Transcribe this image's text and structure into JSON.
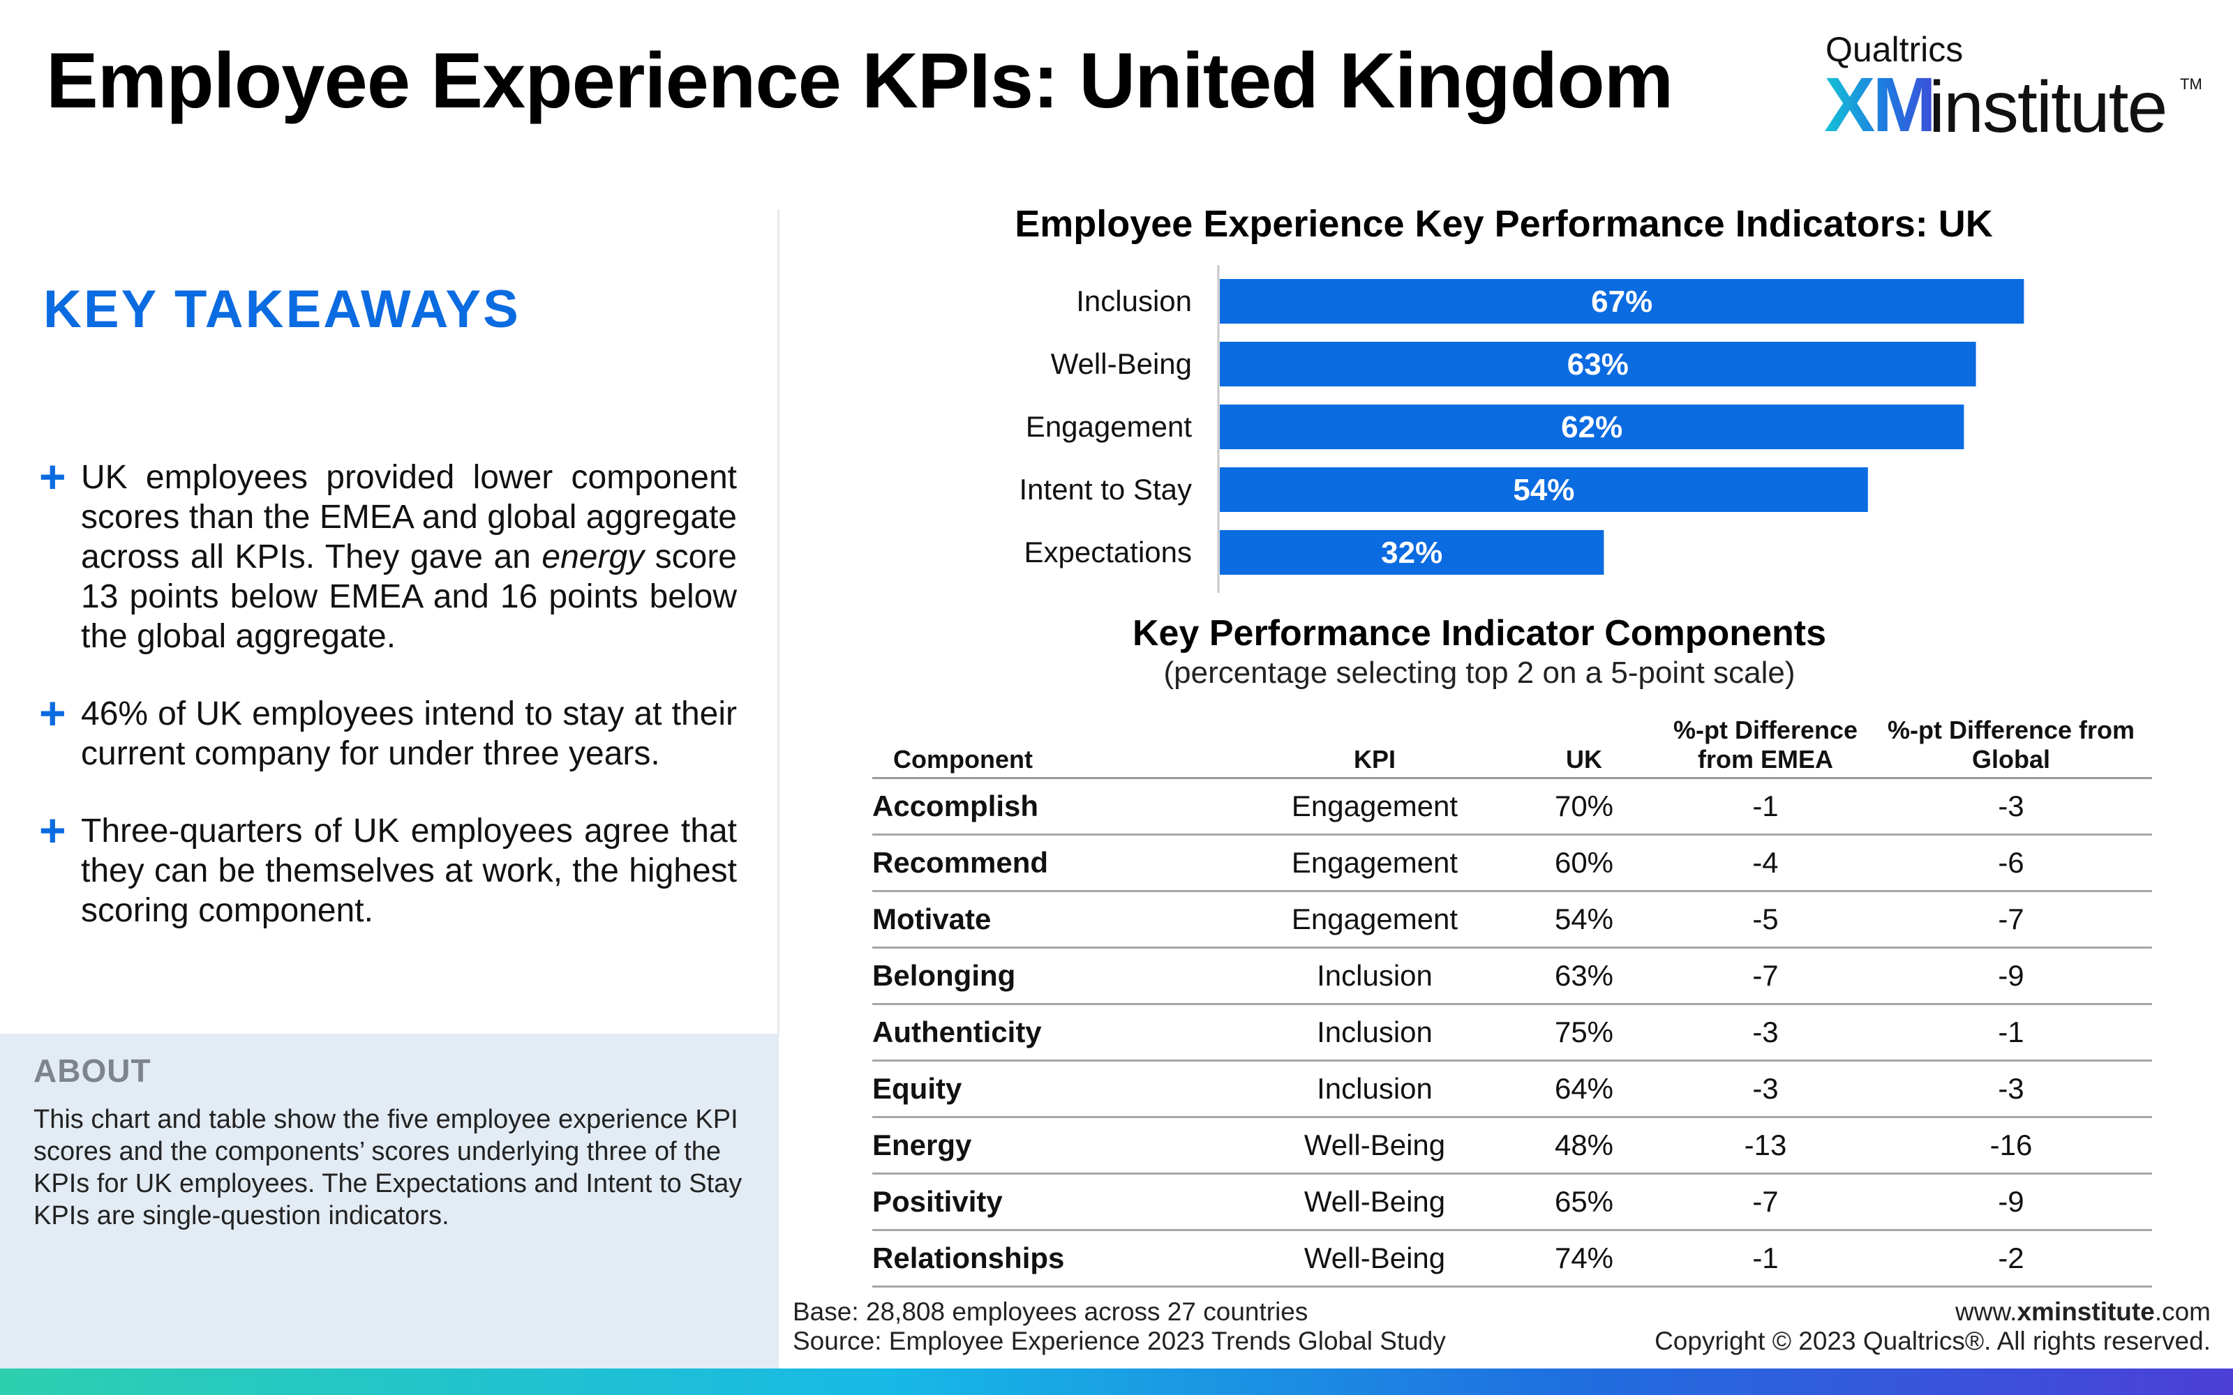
{
  "header": {
    "title": "Employee Experience KPIs: United Kingdom",
    "logo_top": "Qualtrics",
    "logo_xm": "XM",
    "logo_word": "institute",
    "logo_tm": "TM"
  },
  "takeaways": {
    "title": "KEY TAKEAWAYS",
    "items": [
      {
        "pre": "UK employees provided lower component scores than the EMEA and global aggregate across all KPIs. They gave an ",
        "em": "energy",
        "post": " score 13 points below EMEA and 16 points below the global aggregate."
      },
      {
        "pre": "46% of UK employees intend to stay at their current company for under three years.",
        "em": "",
        "post": ""
      },
      {
        "pre": "Three-quarters of UK employees agree that they can be themselves at work, the highest scoring component.",
        "em": "",
        "post": ""
      }
    ]
  },
  "about": {
    "title": "ABOUT",
    "text": "This chart and table show the five employee experience KPI scores and the components’ scores underlying three of the KPIs for UK employees. The Expectations and Intent to Stay KPIs are single-question indicators."
  },
  "colors": {
    "accent": "#0b6be0",
    "bar": "#0b6be0",
    "about_bg": "#e3ebf4"
  },
  "chart_data": {
    "type": "bar",
    "orientation": "horizontal",
    "title": "Employee Experience Key Performance Indicators: UK",
    "categories": [
      "Inclusion",
      "Well-Being",
      "Engagement",
      "Intent to Stay",
      "Expectations"
    ],
    "values": [
      67,
      63,
      62,
      54,
      32
    ],
    "value_suffix": "%",
    "xlim": [
      0,
      100
    ],
    "grid": false
  },
  "table": {
    "title": "Key Performance Indicator Components",
    "subtitle": "(percentage selecting top 2 on a 5-point scale)",
    "headers": [
      "Component",
      "KPI",
      "UK",
      "%-pt Difference from EMEA",
      "%-pt Difference from Global"
    ],
    "rows": [
      [
        "Accomplish",
        "Engagement",
        "70%",
        "-1",
        "-3"
      ],
      [
        "Recommend",
        "Engagement",
        "60%",
        "-4",
        "-6"
      ],
      [
        "Motivate",
        "Engagement",
        "54%",
        "-5",
        "-7"
      ],
      [
        "Belonging",
        "Inclusion",
        "63%",
        "-7",
        "-9"
      ],
      [
        "Authenticity",
        "Inclusion",
        "75%",
        "-3",
        "-1"
      ],
      [
        "Equity",
        "Inclusion",
        "64%",
        "-3",
        "-3"
      ],
      [
        "Energy",
        "Well-Being",
        "48%",
        "-13",
        "-16"
      ],
      [
        "Positivity",
        "Well-Being",
        "65%",
        "-7",
        "-9"
      ],
      [
        "Relationships",
        "Well-Being",
        "74%",
        "-1",
        "-2"
      ]
    ]
  },
  "footer": {
    "base": "Base: 28,808 employees across 27 countries",
    "source": "Source: Employee Experience 2023 Trends Global Study",
    "url_pre": "www.",
    "url_bold": "xminstitute",
    "url_post": ".com",
    "copyright": "Copyright © 2023 Qualtrics®. All rights reserved."
  }
}
